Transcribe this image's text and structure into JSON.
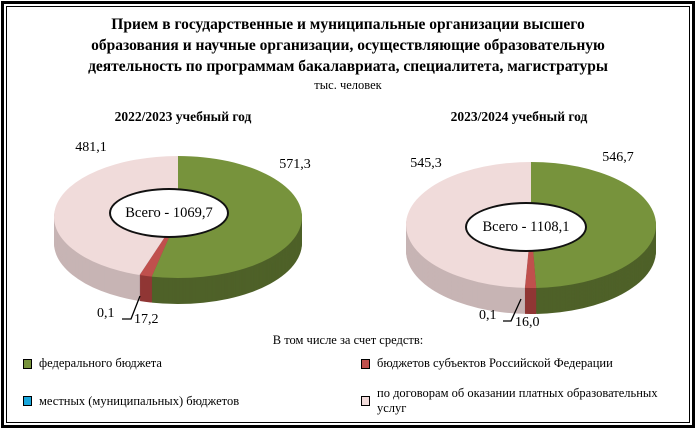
{
  "title_lines": [
    "Прием в государственные и муниципальные организации высшего",
    "образования и научные организации, осуществляющие образовательную",
    "деятельность по программам бакалавриата, специалитета, магистратуры"
  ],
  "subtitle": "тыс. человек",
  "legend": {
    "header": "В том числе за счет средств:",
    "items": [
      {
        "label": "федерального бюджета",
        "color": "#77933c"
      },
      {
        "label": "бюджетов субъектов Российской Федерации",
        "color": "#c0504d"
      },
      {
        "label": "местных (муниципальных) бюджетов",
        "color": "#19a7dc"
      },
      {
        "label": "по договорам об оказании платных образовательных услуг",
        "color": "#f2dcdb"
      }
    ]
  },
  "chart_data": [
    {
      "type": "pie",
      "title": "2022/2023 учебный год",
      "total": 1069.7,
      "total_label": "Всего - 1069,7",
      "units": "тыс. человек",
      "slices": [
        {
          "name": "федерального бюджета",
          "value": 571.3,
          "label": "571,3",
          "color": "#77933c",
          "side": "#4e6128"
        },
        {
          "name": "бюджетов субъектов Российской Федерации",
          "value": 17.2,
          "label": "17,2",
          "color": "#c0504d",
          "side": "#903634"
        },
        {
          "name": "местных (муниципальных) бюджетов",
          "value": 0.1,
          "label": "0,1",
          "color": "#19a7dc",
          "side": "#157fa8"
        },
        {
          "name": "по договорам об оказании платных образовательных услуг",
          "value": 481.1,
          "label": "481,1",
          "color": "#f0dbda",
          "side": "#c7b4b4"
        }
      ]
    },
    {
      "type": "pie",
      "title": "2023/2024 учебный год",
      "total": 1108.1,
      "total_label": "Всего - 1108,1",
      "units": "тыс. человек",
      "slices": [
        {
          "name": "федерального бюджета",
          "value": 546.7,
          "label": "546,7",
          "color": "#77933c",
          "side": "#4e6128"
        },
        {
          "name": "бюджетов субъектов Российской Федерации",
          "value": 16.0,
          "label": "16,0",
          "color": "#c0504d",
          "side": "#903634"
        },
        {
          "name": "местных (муниципальных) бюджетов",
          "value": 0.1,
          "label": "0,1",
          "color": "#19a7dc",
          "side": "#157fa8"
        },
        {
          "name": "по договорам об оказании платных образовательных услуг",
          "value": 545.3,
          "label": "545,3",
          "color": "#f0dbda",
          "side": "#c7b4b4"
        }
      ]
    }
  ]
}
